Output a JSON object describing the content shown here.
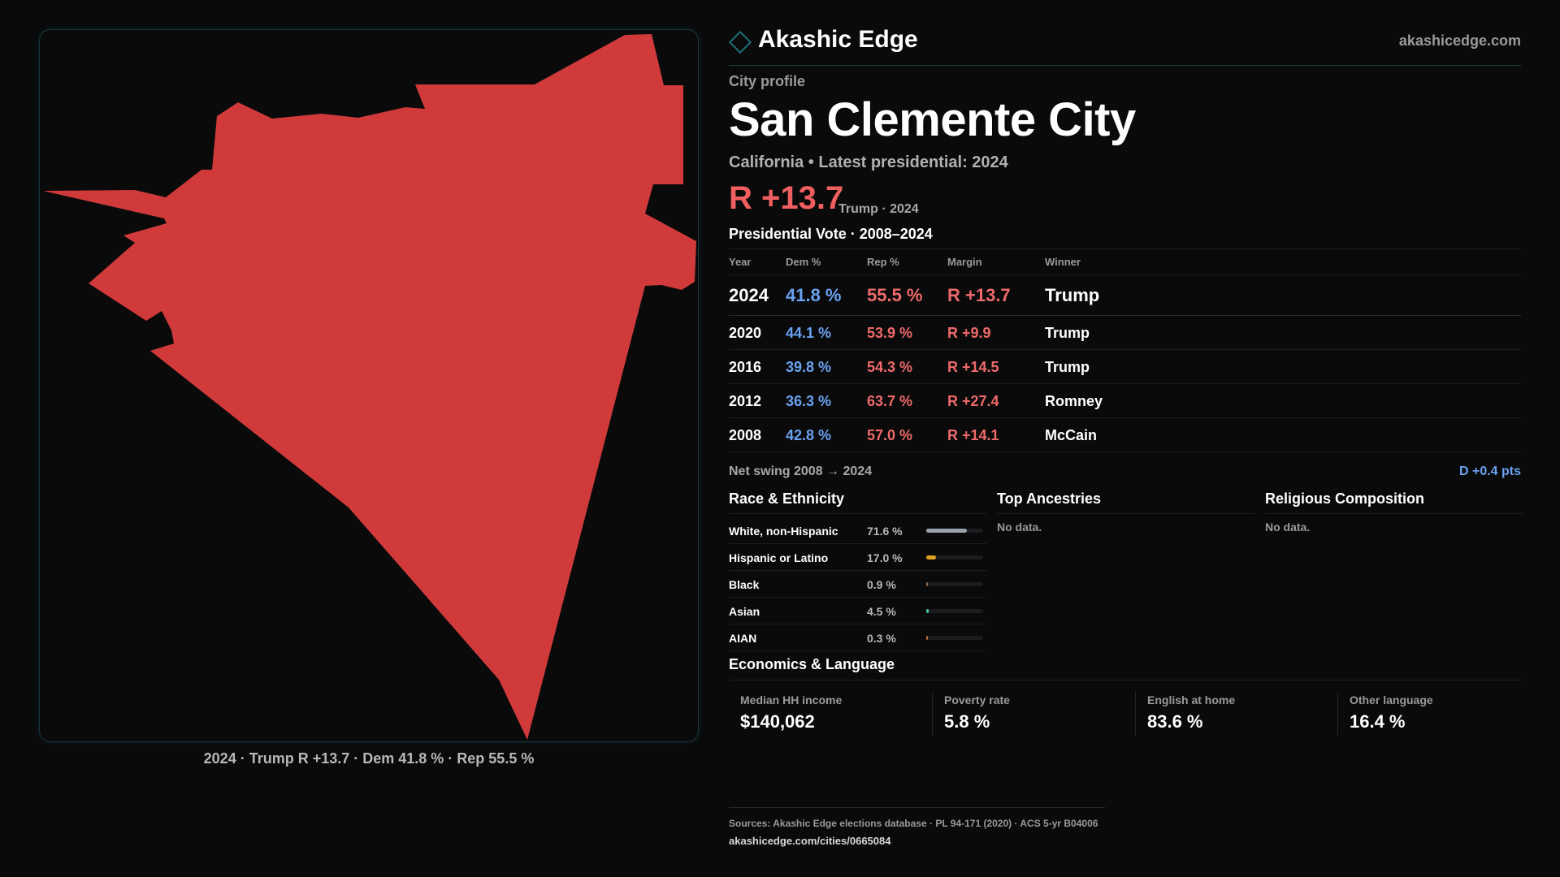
{
  "brand": {
    "name": "Akashic Edge",
    "site": "akashicedge.com"
  },
  "profile": {
    "kicker": "City profile",
    "title": "San Clemente City",
    "subtitle": "California • Latest presidential: 2024",
    "margin": "R +13.7",
    "margin_note": "Trump · 2024"
  },
  "map": {
    "fill_color": "#d13a3a",
    "caption": "2024 · Trump R +13.7 · Dem 41.8 % · Rep 55.5 %"
  },
  "vote": {
    "title": "Presidential Vote · 2008–2024",
    "headers": {
      "year": "Year",
      "dem": "Dem %",
      "rep": "Rep %",
      "margin": "Margin",
      "winner": "Winner"
    },
    "rows": [
      {
        "year": "2024",
        "dem": "41.8 %",
        "rep": "55.5 %",
        "margin": "R +13.7",
        "winner": "Trump"
      },
      {
        "year": "2020",
        "dem": "44.1 %",
        "rep": "53.9 %",
        "margin": "R +9.9",
        "winner": "Trump"
      },
      {
        "year": "2016",
        "dem": "39.8 %",
        "rep": "54.3 %",
        "margin": "R +14.5",
        "winner": "Trump"
      },
      {
        "year": "2012",
        "dem": "36.3 %",
        "rep": "63.7 %",
        "margin": "R +27.4",
        "winner": "Romney"
      },
      {
        "year": "2008",
        "dem": "42.8 %",
        "rep": "57.0 %",
        "margin": "R +14.1",
        "winner": "McCain"
      }
    ],
    "swing_label": "Net swing 2008 → 2024",
    "swing_value": "D +0.4 pts"
  },
  "race": {
    "title": "Race & Ethnicity",
    "rows": [
      {
        "name": "White, non-Hispanic",
        "pct": "71.6 %",
        "value": 71.6,
        "color": "#9aa3ad"
      },
      {
        "name": "Hispanic or Latino",
        "pct": "17.0 %",
        "value": 17.0,
        "color": "#e0a020"
      },
      {
        "name": "Black",
        "pct": "0.9 %",
        "value": 0.9,
        "color": "#8a6a50"
      },
      {
        "name": "Asian",
        "pct": "4.5 %",
        "value": 4.5,
        "color": "#3fc0a0"
      },
      {
        "name": "AIAN",
        "pct": "0.3 %",
        "value": 0.3,
        "color": "#c07040"
      }
    ]
  },
  "ancestries": {
    "title": "Top Ancestries",
    "empty": "No data."
  },
  "religion": {
    "title": "Religious Composition",
    "empty": "No data."
  },
  "economics": {
    "title": "Economics & Language",
    "items": [
      {
        "label": "Median HH income",
        "value": "$140,062"
      },
      {
        "label": "Poverty rate",
        "value": "5.8 %"
      },
      {
        "label": "English at home",
        "value": "83.6 %"
      },
      {
        "label": "Other language",
        "value": "16.4 %"
      }
    ]
  },
  "sources": {
    "text": "Sources: Akashic Edge elections database · PL 94-171 (2020) · ACS 5-yr B04006",
    "url": "akashicedge.com/cities/0665084"
  }
}
